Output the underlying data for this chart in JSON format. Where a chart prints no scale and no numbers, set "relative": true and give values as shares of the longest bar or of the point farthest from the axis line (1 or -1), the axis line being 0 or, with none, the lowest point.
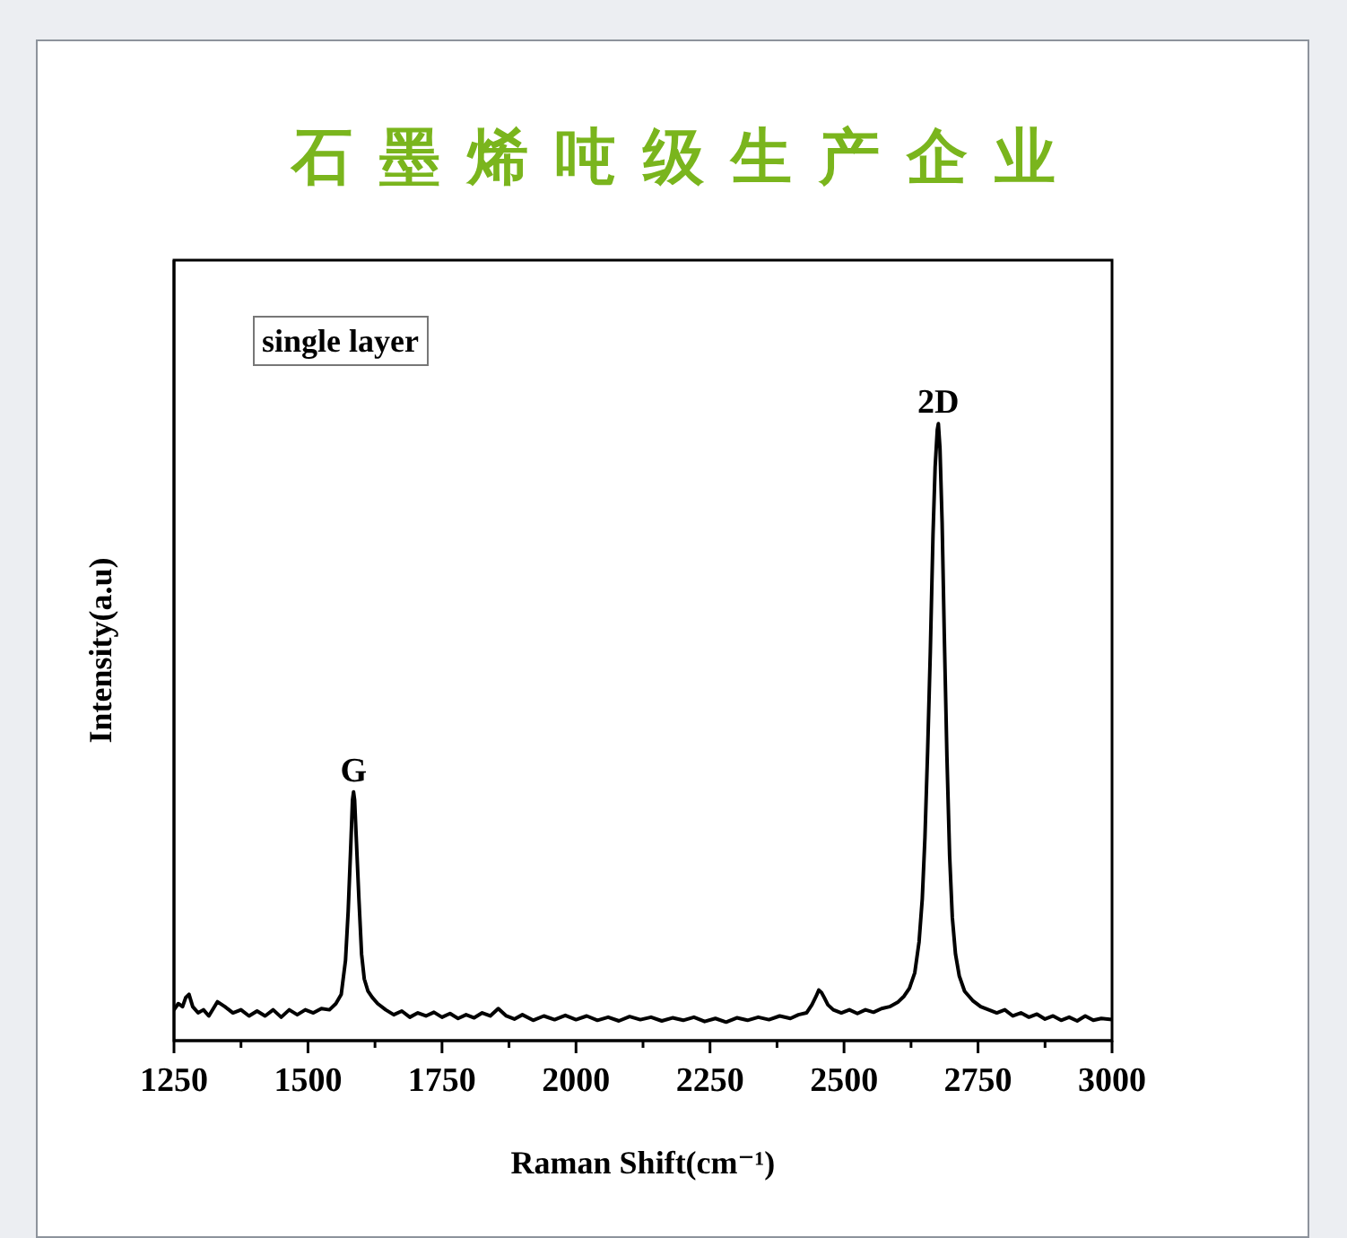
{
  "chart_data": {
    "type": "line",
    "title": "石墨烯吨级生产企业",
    "xlabel": "Raman Shift(cm⁻¹)",
    "ylabel": "Intensity(a.u)",
    "annotations": [
      "single layer",
      {
        "text": "G",
        "x": 1585,
        "y": 0.403
      },
      {
        "text": "2D",
        "x": 2676,
        "y": 1
      }
    ],
    "relative": true,
    "color": "#000000",
    "tick_labels": "x",
    "xlim": [
      1250,
      3000
    ],
    "xticks": [
      1250,
      {
        "value": 1375,
        "label": null
      },
      1500,
      {
        "value": 1625,
        "label": null
      },
      1750,
      {
        "value": 1875,
        "label": null
      },
      2000,
      {
        "value": 2125,
        "label": null
      },
      2250,
      {
        "value": 2375,
        "label": null
      },
      2500,
      {
        "value": 2625,
        "label": null
      },
      2750,
      {
        "value": 2875,
        "label": null
      },
      3000
    ],
    "x": [
      1250,
      1258,
      1266,
      1272,
      1278,
      1285,
      1295,
      1305,
      1315,
      1331,
      1345,
      1360,
      1375,
      1390,
      1405,
      1420,
      1435,
      1450,
      1465,
      1480,
      1495,
      1510,
      1525,
      1540,
      1552,
      1562,
      1570,
      1575,
      1580,
      1583,
      1585,
      1587,
      1590,
      1595,
      1600,
      1605,
      1612,
      1620,
      1630,
      1645,
      1660,
      1675,
      1690,
      1705,
      1720,
      1735,
      1750,
      1765,
      1780,
      1795,
      1810,
      1825,
      1840,
      1855,
      1870,
      1885,
      1900,
      1920,
      1940,
      1960,
      1980,
      2000,
      2020,
      2040,
      2060,
      2080,
      2100,
      2120,
      2140,
      2160,
      2180,
      2200,
      2220,
      2240,
      2260,
      2280,
      2300,
      2320,
      2340,
      2360,
      2380,
      2400,
      2415,
      2430,
      2440,
      2448,
      2453,
      2458,
      2463,
      2470,
      2480,
      2495,
      2510,
      2525,
      2540,
      2555,
      2570,
      2585,
      2600,
      2612,
      2622,
      2632,
      2640,
      2646,
      2651,
      2656,
      2661,
      2666,
      2670,
      2674,
      2676,
      2679,
      2683,
      2687,
      2692,
      2697,
      2702,
      2708,
      2715,
      2725,
      2740,
      2755,
      2770,
      2785,
      2800,
      2815,
      2830,
      2845,
      2860,
      2875,
      2890,
      2905,
      2920,
      2935,
      2950,
      2965,
      2980,
      3000
    ],
    "values": [
      0.05,
      0.06,
      0.055,
      0.07,
      0.075,
      0.055,
      0.045,
      0.05,
      0.04,
      0.063,
      0.055,
      0.045,
      0.05,
      0.04,
      0.048,
      0.04,
      0.05,
      0.038,
      0.05,
      0.042,
      0.05,
      0.045,
      0.052,
      0.05,
      0.06,
      0.075,
      0.13,
      0.21,
      0.32,
      0.39,
      0.403,
      0.39,
      0.33,
      0.23,
      0.14,
      0.1,
      0.08,
      0.07,
      0.06,
      0.05,
      0.042,
      0.048,
      0.038,
      0.045,
      0.04,
      0.046,
      0.038,
      0.044,
      0.036,
      0.042,
      0.037,
      0.045,
      0.04,
      0.052,
      0.04,
      0.035,
      0.042,
      0.033,
      0.04,
      0.034,
      0.041,
      0.034,
      0.04,
      0.033,
      0.038,
      0.032,
      0.039,
      0.034,
      0.038,
      0.032,
      0.037,
      0.033,
      0.038,
      0.031,
      0.036,
      0.03,
      0.037,
      0.033,
      0.038,
      0.034,
      0.04,
      0.036,
      0.042,
      0.045,
      0.058,
      0.072,
      0.082,
      0.078,
      0.07,
      0.058,
      0.05,
      0.045,
      0.05,
      0.044,
      0.05,
      0.046,
      0.052,
      0.055,
      0.062,
      0.072,
      0.085,
      0.11,
      0.16,
      0.23,
      0.33,
      0.47,
      0.63,
      0.82,
      0.93,
      0.99,
      1,
      0.96,
      0.84,
      0.66,
      0.46,
      0.3,
      0.2,
      0.14,
      0.105,
      0.08,
      0.065,
      0.055,
      0.05,
      0.045,
      0.05,
      0.04,
      0.045,
      0.038,
      0.043,
      0.035,
      0.04,
      0.033,
      0.038,
      0.032,
      0.04,
      0.033,
      0.036,
      0.034
    ]
  }
}
